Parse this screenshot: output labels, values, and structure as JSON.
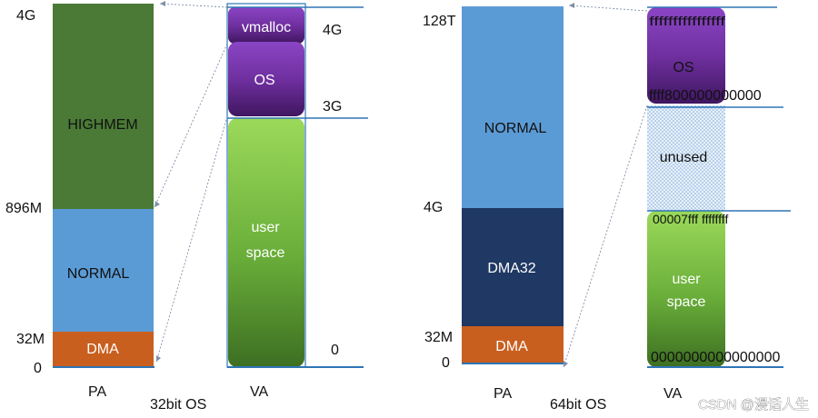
{
  "left": {
    "pa_labels": {
      "top": "4G",
      "highmem_boundary": "896M",
      "dma_boundary": "32M",
      "zero": "0"
    },
    "pa_regions": {
      "highmem": "HIGHMEM",
      "normal": "NORMAL",
      "dma": "DMA"
    },
    "va_labels": {
      "top": "4G",
      "kernel_boundary": "3G",
      "zero": "0"
    },
    "va_regions": {
      "vmalloc": "vmalloc",
      "os": "OS",
      "user_line1": "user",
      "user_line2": "space"
    },
    "pa_caption": "PA",
    "va_caption": "VA",
    "title": "32bit OS"
  },
  "right": {
    "pa_labels": {
      "top": "128T",
      "dma32_boundary": "4G",
      "dma_boundary": "32M",
      "zero": "0"
    },
    "pa_regions": {
      "normal": "NORMAL",
      "dma32": "DMA32",
      "dma": "DMA"
    },
    "va_labels": {
      "top": "ffffffffffffffff",
      "kernel_start": "ffff800000000000",
      "user_end": "00007fff ffffffff",
      "zero": "0000000000000000"
    },
    "va_regions": {
      "os": "OS",
      "unused": "unused",
      "user_line1": "user",
      "user_line2": "space"
    },
    "pa_caption": "PA",
    "va_caption": "VA",
    "title": "64bit OS"
  },
  "watermark": "CSDN @漫话人生",
  "colors": {
    "highmem": "#4a7a35",
    "normal": "#5b9bd5",
    "dma": "#c95f1f",
    "dma32": "#1f3864",
    "os_purple": "#7030a0",
    "user_green": "#6aae3a",
    "unused_dots": "#9dc3e6",
    "line": "#2e75b6"
  }
}
